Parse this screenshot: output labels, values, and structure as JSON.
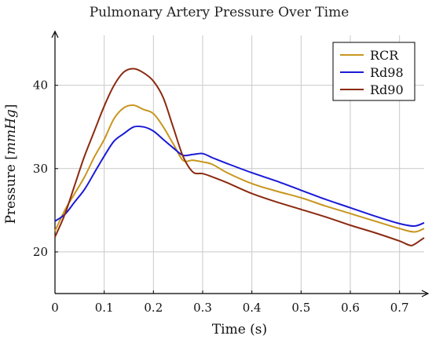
{
  "chart_data": {
    "type": "line",
    "title": "Pulmonary Artery Pressure Over Time",
    "xlabel": "Time (s)",
    "ylabel": "Pressure [mmHg]",
    "xlim": [
      0,
      0.75
    ],
    "ylim": [
      15,
      46
    ],
    "xticks": [
      0,
      0.1,
      0.2,
      0.3,
      0.4,
      0.5,
      0.6,
      0.7
    ],
    "xtick_labels": [
      "0",
      "0.1",
      "0.2",
      "0.3",
      "0.4",
      "0.5",
      "0.6",
      "0.7"
    ],
    "yticks": [
      20,
      30,
      40
    ],
    "ytick_labels": [
      "20",
      "30",
      "40"
    ],
    "grid": true,
    "legend_position": "top-right",
    "series": [
      {
        "name": "RCR",
        "color": "#c8961e",
        "points": [
          [
            0,
            22.5
          ],
          [
            0.02,
            25.0
          ],
          [
            0.04,
            27.0
          ],
          [
            0.06,
            29.0
          ],
          [
            0.08,
            31.4
          ],
          [
            0.1,
            33.5
          ],
          [
            0.12,
            36.0
          ],
          [
            0.14,
            37.3
          ],
          [
            0.16,
            37.6
          ],
          [
            0.18,
            37.1
          ],
          [
            0.2,
            36.6
          ],
          [
            0.22,
            35.0
          ],
          [
            0.24,
            33.0
          ],
          [
            0.26,
            31.0
          ],
          [
            0.28,
            31.0
          ],
          [
            0.3,
            30.8
          ],
          [
            0.32,
            30.5
          ],
          [
            0.35,
            29.5
          ],
          [
            0.4,
            28.2
          ],
          [
            0.45,
            27.3
          ],
          [
            0.5,
            26.5
          ],
          [
            0.55,
            25.5
          ],
          [
            0.6,
            24.6
          ],
          [
            0.65,
            23.7
          ],
          [
            0.7,
            22.8
          ],
          [
            0.73,
            22.4
          ],
          [
            0.75,
            22.8
          ]
        ]
      },
      {
        "name": "Rd98",
        "color": "#1a1ad6",
        "points": [
          [
            0,
            23.7
          ],
          [
            0.02,
            24.5
          ],
          [
            0.04,
            26.0
          ],
          [
            0.06,
            27.5
          ],
          [
            0.08,
            29.5
          ],
          [
            0.1,
            31.5
          ],
          [
            0.12,
            33.3
          ],
          [
            0.14,
            34.2
          ],
          [
            0.16,
            35.0
          ],
          [
            0.18,
            35.0
          ],
          [
            0.2,
            34.5
          ],
          [
            0.22,
            33.5
          ],
          [
            0.24,
            32.5
          ],
          [
            0.26,
            31.6
          ],
          [
            0.28,
            31.7
          ],
          [
            0.3,
            31.8
          ],
          [
            0.32,
            31.3
          ],
          [
            0.35,
            30.6
          ],
          [
            0.4,
            29.5
          ],
          [
            0.45,
            28.5
          ],
          [
            0.5,
            27.4
          ],
          [
            0.55,
            26.3
          ],
          [
            0.6,
            25.3
          ],
          [
            0.65,
            24.3
          ],
          [
            0.7,
            23.4
          ],
          [
            0.73,
            23.1
          ],
          [
            0.75,
            23.5
          ]
        ]
      },
      {
        "name": "Rd90",
        "color": "#8b2a10",
        "points": [
          [
            0,
            21.8
          ],
          [
            0.02,
            24.5
          ],
          [
            0.04,
            28.0
          ],
          [
            0.06,
            31.5
          ],
          [
            0.08,
            34.5
          ],
          [
            0.1,
            37.5
          ],
          [
            0.12,
            40.0
          ],
          [
            0.14,
            41.6
          ],
          [
            0.16,
            42.0
          ],
          [
            0.18,
            41.5
          ],
          [
            0.2,
            40.5
          ],
          [
            0.22,
            38.5
          ],
          [
            0.24,
            35.0
          ],
          [
            0.26,
            31.5
          ],
          [
            0.28,
            29.6
          ],
          [
            0.3,
            29.4
          ],
          [
            0.32,
            29.0
          ],
          [
            0.35,
            28.3
          ],
          [
            0.4,
            27.0
          ],
          [
            0.45,
            26.0
          ],
          [
            0.5,
            25.1
          ],
          [
            0.55,
            24.2
          ],
          [
            0.6,
            23.2
          ],
          [
            0.65,
            22.3
          ],
          [
            0.7,
            21.3
          ],
          [
            0.72,
            20.8
          ],
          [
            0.73,
            20.9
          ],
          [
            0.75,
            21.7
          ]
        ]
      }
    ]
  }
}
